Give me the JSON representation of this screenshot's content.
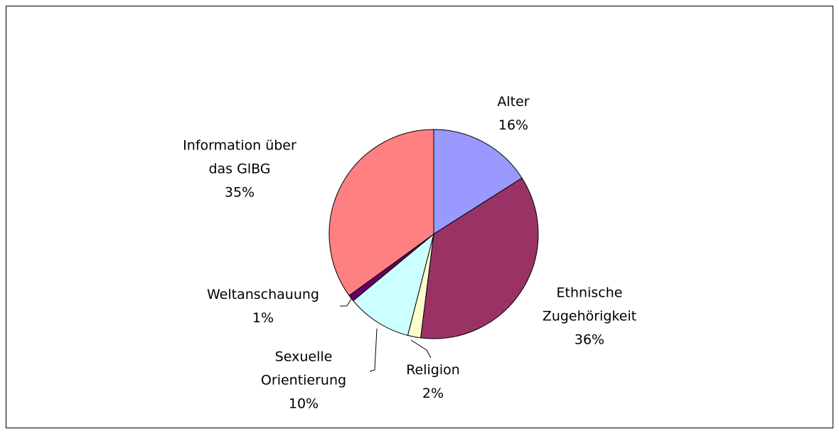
{
  "chart_data": {
    "type": "pie",
    "categories": [
      "Alter",
      "Ethnische Zugehörigkeit",
      "Religion",
      "Sexuelle Orientierung",
      "Weltanschauung",
      "Information über das GlBG"
    ],
    "values": [
      16,
      36,
      2,
      10,
      1,
      35
    ],
    "value_labels": [
      "16%",
      "36%",
      "2%",
      "10%",
      "1%",
      "35%"
    ],
    "colors": [
      "#9999ff",
      "#993366",
      "#ffffcc",
      "#ccffff",
      "#660066",
      "#ff8080"
    ]
  }
}
